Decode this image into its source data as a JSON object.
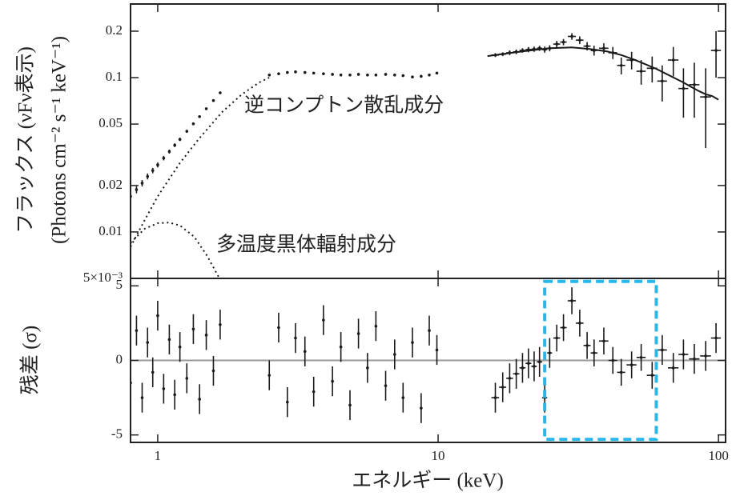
{
  "chart_data": [
    {
      "type": "errorbar",
      "ylabel": [
        "フラックス (νFν表示)",
        "(Photons cm⁻² s⁻¹ keV⁻¹)"
      ],
      "log_x": true,
      "log_y": true,
      "xlim": [
        0.8,
        106
      ],
      "ylim": [
        0.005,
        0.3
      ],
      "yticks": [
        0.2,
        0.1,
        0.05,
        0.02,
        0.01,
        {
          "value": 0.005,
          "label": "5×10⁻³"
        }
      ],
      "annotations": [
        "逆コンプトン散乱成分",
        "多温度黒体輻射成分"
      ],
      "series": [
        {
          "style": "points",
          "color": "#1a1a1a",
          "x": [
            0.8,
            0.84,
            0.88,
            0.92,
            0.96,
            1.0,
            1.05,
            1.1,
            1.15,
            1.2,
            1.27,
            1.34,
            1.41,
            1.49,
            1.58,
            1.67,
            2.5,
            2.7,
            2.9,
            3.1,
            3.35,
            3.6,
            3.9,
            4.2,
            4.5,
            4.85,
            5.2,
            5.6,
            6.0,
            6.5,
            7.0,
            7.5,
            8.1,
            8.7,
            9.3,
            9.9,
            16,
            17,
            18,
            19,
            20,
            21,
            22,
            23,
            24,
            25,
            26.5,
            28,
            30,
            32,
            34,
            36,
            39,
            42,
            45,
            49,
            53,
            58,
            63,
            69,
            75,
            82,
            90,
            98
          ],
          "values": [
            0.017,
            0.0188,
            0.0207,
            0.0229,
            0.025,
            0.0272,
            0.0301,
            0.0332,
            0.0365,
            0.0398,
            0.0449,
            0.0502,
            0.0559,
            0.0629,
            0.071,
            0.0797,
            0.104,
            0.106,
            0.108,
            0.109,
            0.108,
            0.107,
            0.106,
            0.105,
            0.104,
            0.104,
            0.105,
            0.104,
            0.104,
            0.105,
            0.104,
            0.103,
            0.101,
            0.102,
            0.104,
            0.107,
            0.14,
            0.142,
            0.145,
            0.147,
            0.15,
            0.152,
            0.153,
            0.155,
            0.152,
            0.155,
            0.165,
            0.17,
            0.185,
            0.175,
            0.16,
            0.15,
            0.155,
            0.145,
            0.12,
            0.13,
            0.11,
            0.115,
            0.095,
            0.13,
            0.085,
            0.09,
            0.075,
            0.15
          ],
          "errors": [
            0.001,
            0.001,
            0.001,
            0.001,
            0.001,
            0.001,
            0.001,
            0.001,
            0.001,
            0.001,
            0.001,
            0.001,
            0.001,
            0.001,
            0.001,
            0.001,
            0.002,
            0.002,
            0.002,
            0.002,
            0.002,
            0.002,
            0.002,
            0.002,
            0.002,
            0.002,
            0.002,
            0.002,
            0.002,
            0.002,
            0.002,
            0.002,
            0.002,
            0.002,
            0.002,
            0.002,
            0.004,
            0.004,
            0.005,
            0.005,
            0.005,
            0.006,
            0.006,
            0.006,
            0.007,
            0.007,
            0.008,
            0.008,
            0.009,
            0.01,
            0.01,
            0.011,
            0.012,
            0.013,
            0.015,
            0.017,
            0.02,
            0.022,
            0.025,
            0.028,
            0.03,
            0.035,
            0.04,
            0.05
          ],
          "x_errors": [
            0,
            0,
            0,
            0,
            0,
            0,
            0,
            0,
            0,
            0,
            0,
            0,
            0,
            0,
            0,
            0,
            0,
            0,
            0,
            0,
            0,
            0,
            0,
            0,
            0,
            0,
            0,
            0,
            0,
            0,
            0,
            0,
            0,
            0,
            0,
            0,
            0.5,
            0.5,
            0.5,
            0.5,
            0.5,
            0.5,
            0.5,
            0.5,
            0.5,
            0.5,
            0.75,
            0.75,
            1,
            1,
            1,
            1,
            1.5,
            1.5,
            1.5,
            2,
            2,
            2.5,
            2.5,
            3,
            3,
            3.5,
            4,
            4
          ]
        },
        {
          "style": "line",
          "color": "#1a1a1a",
          "x": [
            15,
            20,
            25,
            30,
            35,
            40,
            45,
            50,
            55,
            60,
            65,
            70,
            75,
            80,
            85,
            90,
            95,
            100
          ],
          "values": [
            0.138,
            0.148,
            0.155,
            0.157,
            0.153,
            0.148,
            0.14,
            0.131,
            0.122,
            0.114,
            0.106,
            0.099,
            0.093,
            0.087,
            0.082,
            0.078,
            0.076,
            0.072
          ]
        },
        {
          "style": "dotted",
          "color": "#1a1a1a",
          "x": [
            0.8,
            0.9,
            1.0,
            1.2,
            1.4,
            1.7,
            2.0,
            2.3,
            2.5
          ],
          "values": [
            0.008,
            0.012,
            0.017,
            0.028,
            0.04,
            0.06,
            0.078,
            0.093,
            0.1
          ]
        },
        {
          "style": "dotted",
          "color": "#1a1a1a",
          "x": [
            0.8,
            0.9,
            1.0,
            1.1,
            1.2,
            1.35,
            1.5,
            1.65
          ],
          "values": [
            0.0085,
            0.0105,
            0.0114,
            0.0115,
            0.011,
            0.0093,
            0.007,
            0.0051
          ]
        }
      ]
    },
    {
      "type": "errorbar",
      "ylabel": [
        "残差 (σ)"
      ],
      "xlabel": "エネルギー (keV)",
      "log_x": true,
      "log_y": false,
      "xlim": [
        0.8,
        106
      ],
      "ylim": [
        -5.5,
        5.5
      ],
      "xticks": [
        1,
        10,
        100
      ],
      "yticks": [
        5,
        0,
        -5
      ],
      "zero_line": {
        "value": 0,
        "color": "#999999"
      },
      "highlight": {
        "xlim": [
          24,
          60
        ],
        "ylim": [
          -5.3,
          5.3
        ],
        "color": "#29b6e8"
      },
      "series": [
        {
          "style": "points",
          "color": "#1a1a1a",
          "x": [
            0.8,
            0.84,
            0.88,
            0.92,
            0.96,
            1.0,
            1.05,
            1.1,
            1.15,
            1.2,
            1.27,
            1.34,
            1.41,
            1.49,
            1.58,
            1.67,
            2.5,
            2.7,
            2.9,
            3.1,
            3.35,
            3.6,
            3.9,
            4.2,
            4.5,
            4.85,
            5.2,
            5.6,
            6.0,
            6.5,
            7.0,
            7.5,
            8.1,
            8.7,
            9.3,
            9.9,
            16,
            17,
            18,
            19,
            20,
            21,
            22,
            23,
            24,
            25,
            26.5,
            28,
            30,
            32,
            34,
            36,
            39,
            42,
            45,
            49,
            53,
            58,
            63,
            69,
            75,
            82,
            90,
            98
          ],
          "values": [
            -1.5,
            2,
            -2.5,
            1.2,
            -0.8,
            3,
            -1.9,
            1.4,
            -2.3,
            0.9,
            -1.2,
            2.1,
            -2.6,
            1.7,
            -0.7,
            2.4,
            -1,
            2.2,
            -2.8,
            1.5,
            0.6,
            -2.1,
            2.7,
            -1.4,
            0.9,
            -3.0,
            1.8,
            -0.5,
            2.3,
            -1.7,
            0.4,
            -2.5,
            1.2,
            -3.2,
            2.0,
            0.7,
            -2.5,
            -1.8,
            -1.2,
            -0.9,
            -0.5,
            -0.2,
            -0.4,
            -0.1,
            -2.5,
            0.5,
            1.5,
            2.2,
            4.0,
            2.5,
            1.0,
            0.5,
            1.3,
            0,
            -0.8,
            -0.3,
            0.2,
            -1.0,
            0.7,
            -0.5,
            0.4,
            0.1,
            0.3,
            1.5
          ],
          "errors": [
            1,
            1,
            1,
            1,
            1,
            1,
            1,
            1,
            1,
            1,
            1,
            1,
            1,
            1,
            1,
            1,
            1,
            1,
            1,
            1,
            1,
            1,
            1,
            1,
            1,
            1,
            1,
            1,
            1,
            1,
            1,
            1,
            1,
            1,
            1,
            1,
            1,
            1,
            1,
            1,
            1,
            1,
            1,
            1,
            1,
            1,
            0.9,
            0.9,
            0.9,
            0.9,
            0.9,
            0.9,
            0.9,
            0.9,
            0.9,
            0.9,
            0.9,
            0.9,
            1,
            1,
            1,
            1,
            1,
            1
          ],
          "x_errors": [
            0,
            0,
            0,
            0,
            0,
            0,
            0,
            0,
            0,
            0,
            0,
            0,
            0,
            0,
            0,
            0,
            0,
            0,
            0,
            0,
            0,
            0,
            0,
            0,
            0,
            0,
            0,
            0,
            0,
            0,
            0,
            0,
            0,
            0,
            0,
            0,
            0.5,
            0.5,
            0.5,
            0.5,
            0.5,
            0.5,
            0.5,
            0.5,
            0.5,
            0.5,
            0.75,
            0.75,
            1,
            1,
            1,
            1,
            1.5,
            1.5,
            1.5,
            2,
            2,
            2.5,
            2.5,
            3,
            3,
            3.5,
            4,
            4
          ]
        }
      ]
    }
  ]
}
